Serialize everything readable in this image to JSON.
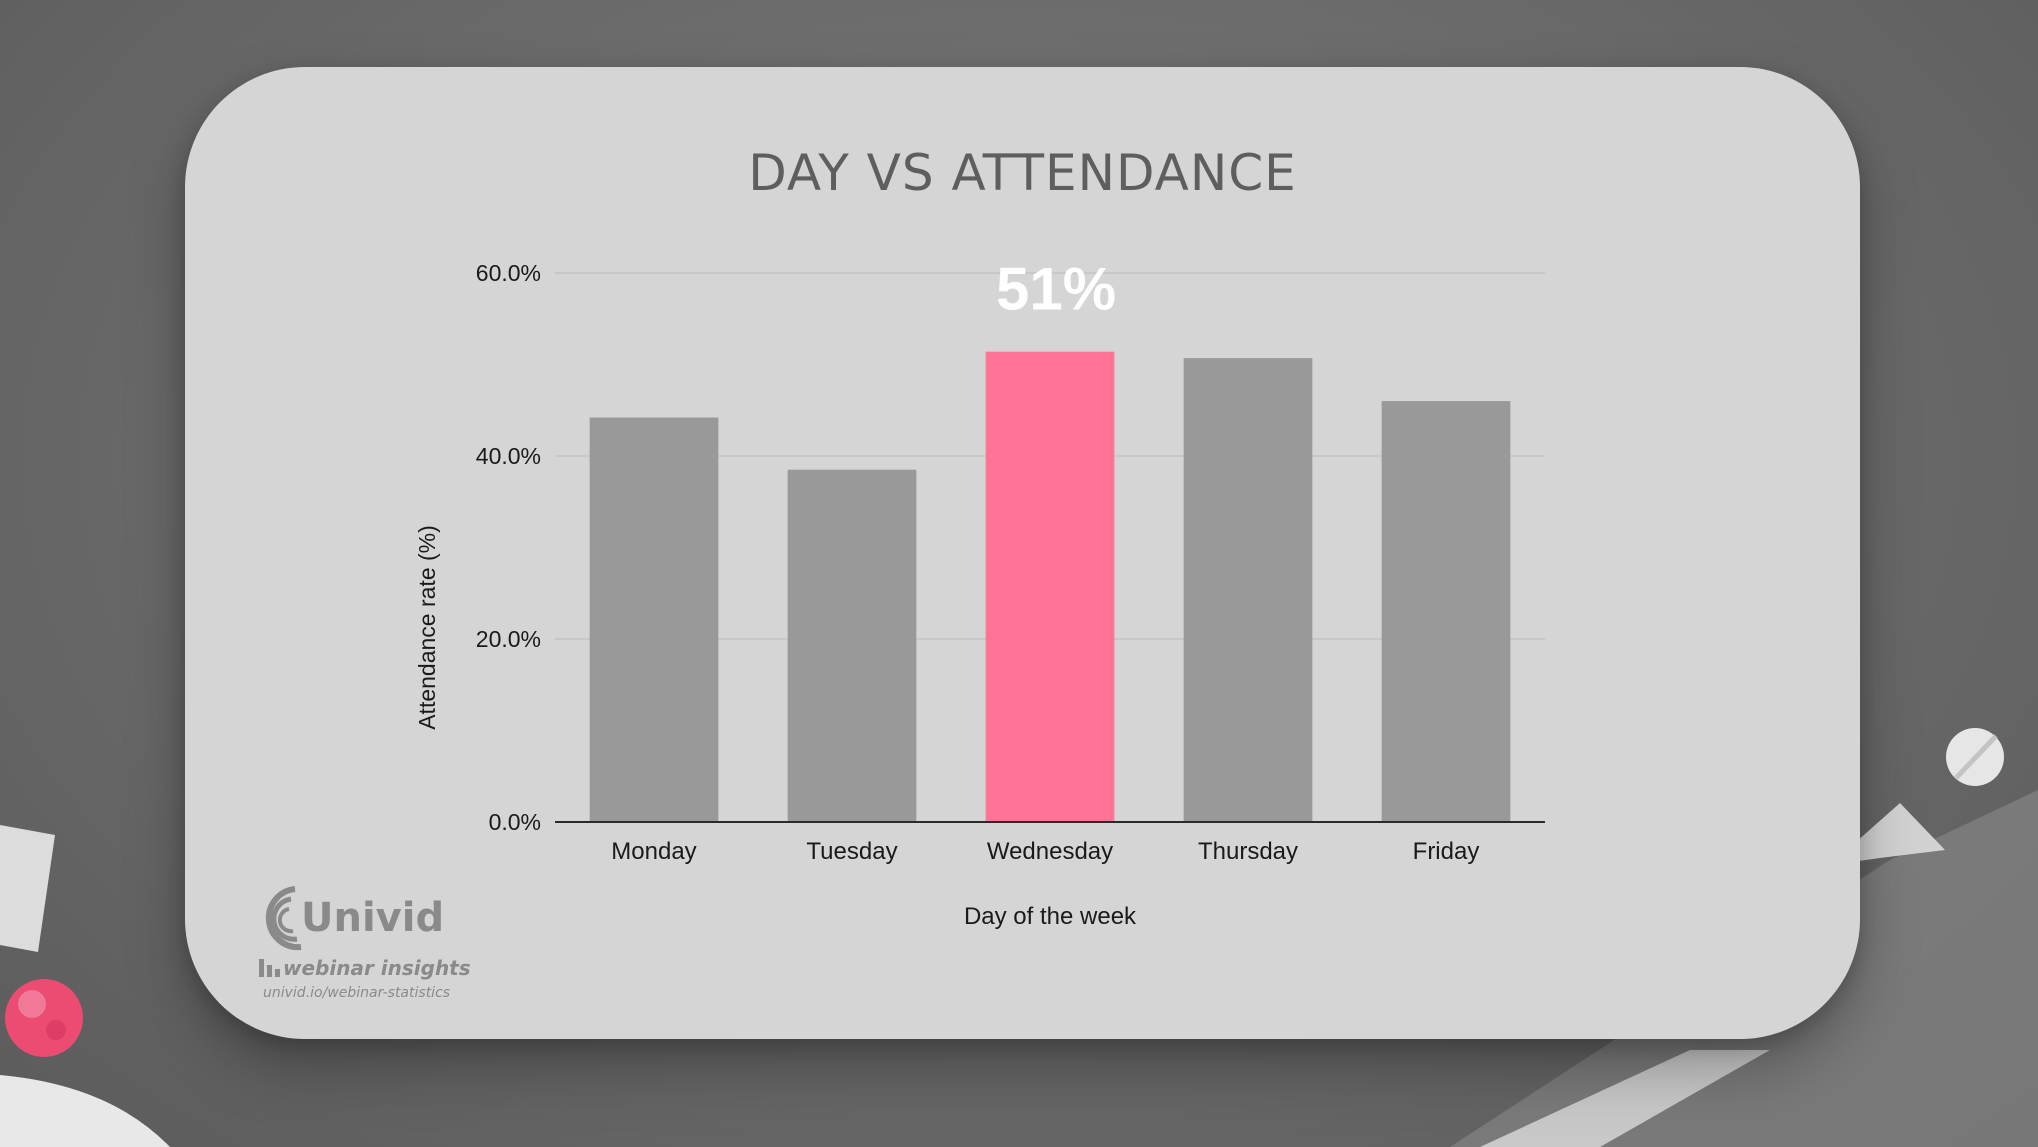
{
  "chart_data": {
    "type": "bar",
    "title": "DAY VS ATTENDANCE",
    "categories": [
      "Monday",
      "Tuesday",
      "Wednesday",
      "Thursday",
      "Friday"
    ],
    "values": [
      44.2,
      38.5,
      51.4,
      50.7,
      46.0
    ],
    "ylabel": "Attendance rate (%)",
    "xlabel": "Day of the week",
    "ylim": [
      0,
      60
    ],
    "yticks": [
      "0.0%",
      "20.0%",
      "40.0%",
      "60.0%"
    ],
    "grid": true,
    "highlight": {
      "category": "Wednesday",
      "label": "51%"
    },
    "colors": {
      "bar": "#999999",
      "highlight": "#ff7496",
      "highlight_label": "#ffffff"
    }
  },
  "branding": {
    "name": "Univid",
    "tagline": "webinar insights",
    "url": "univid.io/webinar-statistics"
  }
}
